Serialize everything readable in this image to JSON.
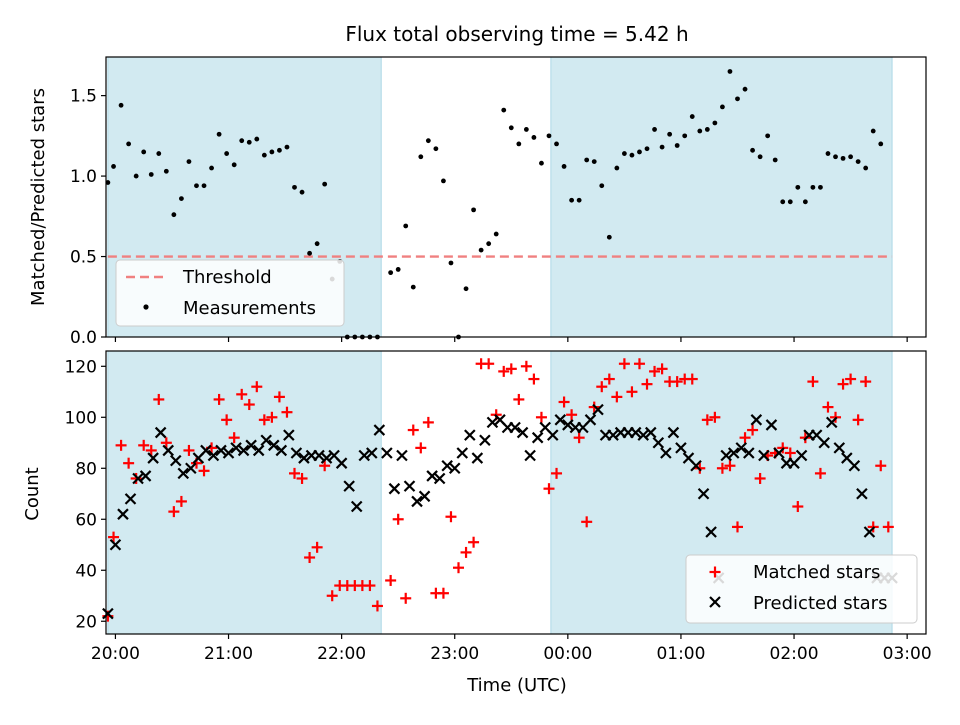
{
  "title": "Flux total observing time = 5.42 h",
  "colors": {
    "shade": "#add8e6",
    "threshold": "#f08080",
    "matched": "#ff0000",
    "predicted": "#000000"
  },
  "chart_data": [
    {
      "type": "scatter",
      "ylabel": "Matched/Predicted stars",
      "xlabel": "",
      "xlim": [
        "19:55",
        "03:10"
      ],
      "ylim": [
        0,
        1.74
      ],
      "yticks": [
        "0.0",
        "0.5",
        "1.0",
        "1.5"
      ],
      "grid": false,
      "legend_position": "bottom-left",
      "shaded_intervals": [
        [
          "19:56",
          "22:21"
        ],
        [
          "23:51",
          "02:52"
        ]
      ],
      "threshold": {
        "name": "Threshold",
        "value": 0.5,
        "style": "dashed"
      },
      "series": [
        {
          "name": "Measurements",
          "x": [
            "19:56",
            "19:59",
            "20:03",
            "20:07",
            "20:11",
            "20:15",
            "20:19",
            "20:23",
            "20:27",
            "20:31",
            "20:35",
            "20:39",
            "20:43",
            "20:47",
            "20:51",
            "20:55",
            "20:59",
            "21:03",
            "21:07",
            "21:11",
            "21:15",
            "21:19",
            "21:23",
            "21:27",
            "21:31",
            "21:35",
            "21:39",
            "21:43",
            "21:47",
            "21:51",
            "21:55",
            "21:59",
            "22:03",
            "22:07",
            "22:11",
            "22:15",
            "22:19",
            "22:26",
            "22:30",
            "22:34",
            "22:38",
            "22:42",
            "22:46",
            "22:50",
            "22:54",
            "22:58",
            "23:02",
            "23:06",
            "23:10",
            "23:14",
            "23:18",
            "23:22",
            "23:26",
            "23:30",
            "23:34",
            "23:38",
            "23:42",
            "23:46",
            "23:50",
            "23:54",
            "23:58",
            "00:02",
            "00:06",
            "00:10",
            "00:14",
            "00:18",
            "00:22",
            "00:26",
            "00:30",
            "00:34",
            "00:38",
            "00:42",
            "00:46",
            "00:50",
            "00:54",
            "00:58",
            "01:02",
            "01:06",
            "01:10",
            "01:14",
            "01:18",
            "01:22",
            "01:26",
            "01:30",
            "01:34",
            "01:38",
            "01:42",
            "01:46",
            "01:50",
            "01:54",
            "01:58",
            "02:02",
            "02:06",
            "02:10",
            "02:14",
            "02:18",
            "02:22",
            "02:26",
            "02:30",
            "02:34",
            "02:38",
            "02:42",
            "02:46"
          ],
          "y": [
            0.96,
            1.06,
            1.44,
            1.2,
            1.0,
            1.15,
            1.01,
            1.14,
            1.03,
            0.76,
            0.86,
            1.09,
            0.94,
            0.94,
            1.05,
            1.26,
            1.14,
            1.07,
            1.22,
            1.21,
            1.23,
            1.13,
            1.15,
            1.16,
            1.18,
            0.93,
            0.9,
            0.52,
            0.58,
            0.95,
            0.36,
            0.47,
            0.0,
            0.0,
            0.0,
            0.0,
            0.0,
            0.4,
            0.42,
            0.69,
            0.31,
            1.12,
            1.22,
            1.17,
            0.97,
            0.46,
            0.0,
            0.3,
            0.79,
            0.54,
            0.58,
            0.64,
            1.41,
            1.3,
            1.2,
            1.29,
            1.24,
            1.08,
            1.25,
            1.2,
            1.06,
            0.85,
            0.85,
            1.1,
            1.09,
            0.94,
            0.62,
            1.05,
            1.14,
            1.13,
            1.15,
            1.17,
            1.29,
            1.18,
            1.26,
            1.19,
            1.25,
            1.37,
            1.28,
            1.29,
            1.33,
            1.43,
            1.65,
            1.48,
            1.54,
            1.16,
            1.12,
            1.25,
            1.1,
            0.84,
            0.84,
            0.93,
            0.84,
            0.93,
            0.93,
            1.14,
            1.12,
            1.11,
            1.12,
            1.09,
            1.05,
            1.28,
            1.2
          ]
        }
      ]
    },
    {
      "type": "scatter",
      "ylabel": "Count",
      "xlabel": "Time (UTC)",
      "xlim": [
        "19:55",
        "03:10"
      ],
      "ylim": [
        15,
        126
      ],
      "xticks": [
        "20:00",
        "21:00",
        "22:00",
        "23:00",
        "00:00",
        "01:00",
        "02:00",
        "03:00"
      ],
      "yticks": [
        "20",
        "40",
        "60",
        "80",
        "100",
        "120"
      ],
      "grid": false,
      "legend_position": "bottom-right",
      "shaded_intervals": [
        [
          "19:56",
          "22:21"
        ],
        [
          "23:51",
          "02:52"
        ]
      ],
      "series": [
        {
          "name": "Matched stars",
          "marker": "+",
          "x": [
            "19:56",
            "19:59",
            "20:03",
            "20:07",
            "20:11",
            "20:15",
            "20:19",
            "20:23",
            "20:27",
            "20:31",
            "20:35",
            "20:39",
            "20:43",
            "20:47",
            "20:51",
            "20:55",
            "20:59",
            "21:03",
            "21:07",
            "21:11",
            "21:15",
            "21:19",
            "21:23",
            "21:27",
            "21:31",
            "21:35",
            "21:39",
            "21:43",
            "21:47",
            "21:51",
            "21:55",
            "21:59",
            "22:03",
            "22:07",
            "22:11",
            "22:15",
            "22:19",
            "22:26",
            "22:30",
            "22:34",
            "22:38",
            "22:42",
            "22:46",
            "22:50",
            "22:54",
            "22:58",
            "23:02",
            "23:06",
            "23:10",
            "23:14",
            "23:18",
            "23:22",
            "23:26",
            "23:30",
            "23:34",
            "23:38",
            "23:42",
            "23:46",
            "23:50",
            "23:54",
            "23:58",
            "00:02",
            "00:06",
            "00:10",
            "00:14",
            "00:18",
            "00:22",
            "00:26",
            "00:30",
            "00:34",
            "00:38",
            "00:42",
            "00:46",
            "00:50",
            "00:54",
            "00:58",
            "01:02",
            "01:06",
            "01:10",
            "01:14",
            "01:18",
            "01:22",
            "01:26",
            "01:30",
            "01:34",
            "01:38",
            "01:42",
            "01:46",
            "01:50",
            "01:54",
            "01:58",
            "02:02",
            "02:06",
            "02:10",
            "02:14",
            "02:18",
            "02:22",
            "02:26",
            "02:30",
            "02:34",
            "02:38",
            "02:42",
            "02:46",
            "02:50"
          ],
          "y": [
            22,
            53,
            89,
            82,
            76,
            89,
            87,
            107,
            90,
            63,
            67,
            87,
            82,
            79,
            88,
            107,
            99,
            92,
            109,
            105,
            112,
            99,
            100,
            108,
            102,
            78,
            76,
            45,
            49,
            81,
            30,
            34,
            34,
            34,
            34,
            34,
            26,
            36,
            60,
            29,
            95,
            88,
            98,
            31,
            31,
            61,
            41,
            47,
            51,
            121,
            121,
            101,
            118,
            119,
            107,
            120,
            115,
            100,
            72,
            78,
            106,
            101,
            92,
            59,
            104,
            112,
            115,
            108,
            121,
            110,
            121,
            113,
            118,
            119,
            114,
            114,
            115,
            115,
            80,
            99,
            100,
            80,
            81,
            57,
            92,
            95,
            76,
            85,
            86,
            88,
            86,
            65,
            92,
            114,
            78,
            104,
            100,
            113,
            115,
            99,
            114,
            57,
            81,
            57
          ]
        },
        {
          "name": "Predicted stars",
          "marker": "x",
          "x": [
            "19:56",
            "20:00",
            "20:04",
            "20:08",
            "20:12",
            "20:16",
            "20:20",
            "20:24",
            "20:28",
            "20:32",
            "20:36",
            "20:40",
            "20:44",
            "20:48",
            "20:52",
            "20:56",
            "21:00",
            "21:04",
            "21:08",
            "21:12",
            "21:16",
            "21:20",
            "21:24",
            "21:28",
            "21:32",
            "21:36",
            "21:40",
            "21:44",
            "21:48",
            "21:52",
            "21:56",
            "22:00",
            "22:04",
            "22:08",
            "22:12",
            "22:16",
            "22:20",
            "22:24",
            "22:28",
            "22:32",
            "22:36",
            "22:40",
            "22:44",
            "22:48",
            "22:52",
            "22:56",
            "23:00",
            "23:04",
            "23:08",
            "23:12",
            "23:16",
            "23:20",
            "23:24",
            "23:28",
            "23:32",
            "23:36",
            "23:40",
            "23:44",
            "23:48",
            "23:52",
            "23:56",
            "00:00",
            "00:04",
            "00:08",
            "00:12",
            "00:16",
            "00:20",
            "00:24",
            "00:28",
            "00:32",
            "00:36",
            "00:40",
            "00:44",
            "00:48",
            "00:52",
            "00:56",
            "01:00",
            "01:04",
            "01:08",
            "01:12",
            "01:16",
            "01:20",
            "01:24",
            "01:28",
            "01:32",
            "01:36",
            "01:40",
            "01:44",
            "01:48",
            "01:52",
            "01:56",
            "02:00",
            "02:04",
            "02:08",
            "02:12",
            "02:16",
            "02:20",
            "02:24",
            "02:28",
            "02:32",
            "02:36",
            "02:40",
            "02:44",
            "02:48",
            "02:52"
          ],
          "y": [
            23,
            50,
            62,
            68,
            76,
            77,
            84,
            94,
            87,
            83,
            78,
            80,
            84,
            87,
            85,
            87,
            86,
            88,
            87,
            89,
            87,
            91,
            89,
            87,
            93,
            86,
            84,
            85,
            85,
            84,
            85,
            82,
            73,
            65,
            85,
            86,
            95,
            86,
            72,
            85,
            73,
            67,
            69,
            77,
            76,
            81,
            80,
            86,
            93,
            84,
            91,
            98,
            99,
            96,
            96,
            94,
            85,
            92,
            96,
            93,
            99,
            97,
            96,
            96,
            99,
            103,
            93,
            93,
            94,
            94,
            94,
            93,
            94,
            90,
            86,
            94,
            88,
            84,
            81,
            70,
            55,
            37,
            85,
            86,
            88,
            86,
            99,
            85,
            97,
            86,
            82,
            82,
            85,
            93,
            93,
            90,
            98,
            88,
            84,
            81,
            70,
            55,
            37,
            37,
            37
          ]
        }
      ]
    }
  ]
}
